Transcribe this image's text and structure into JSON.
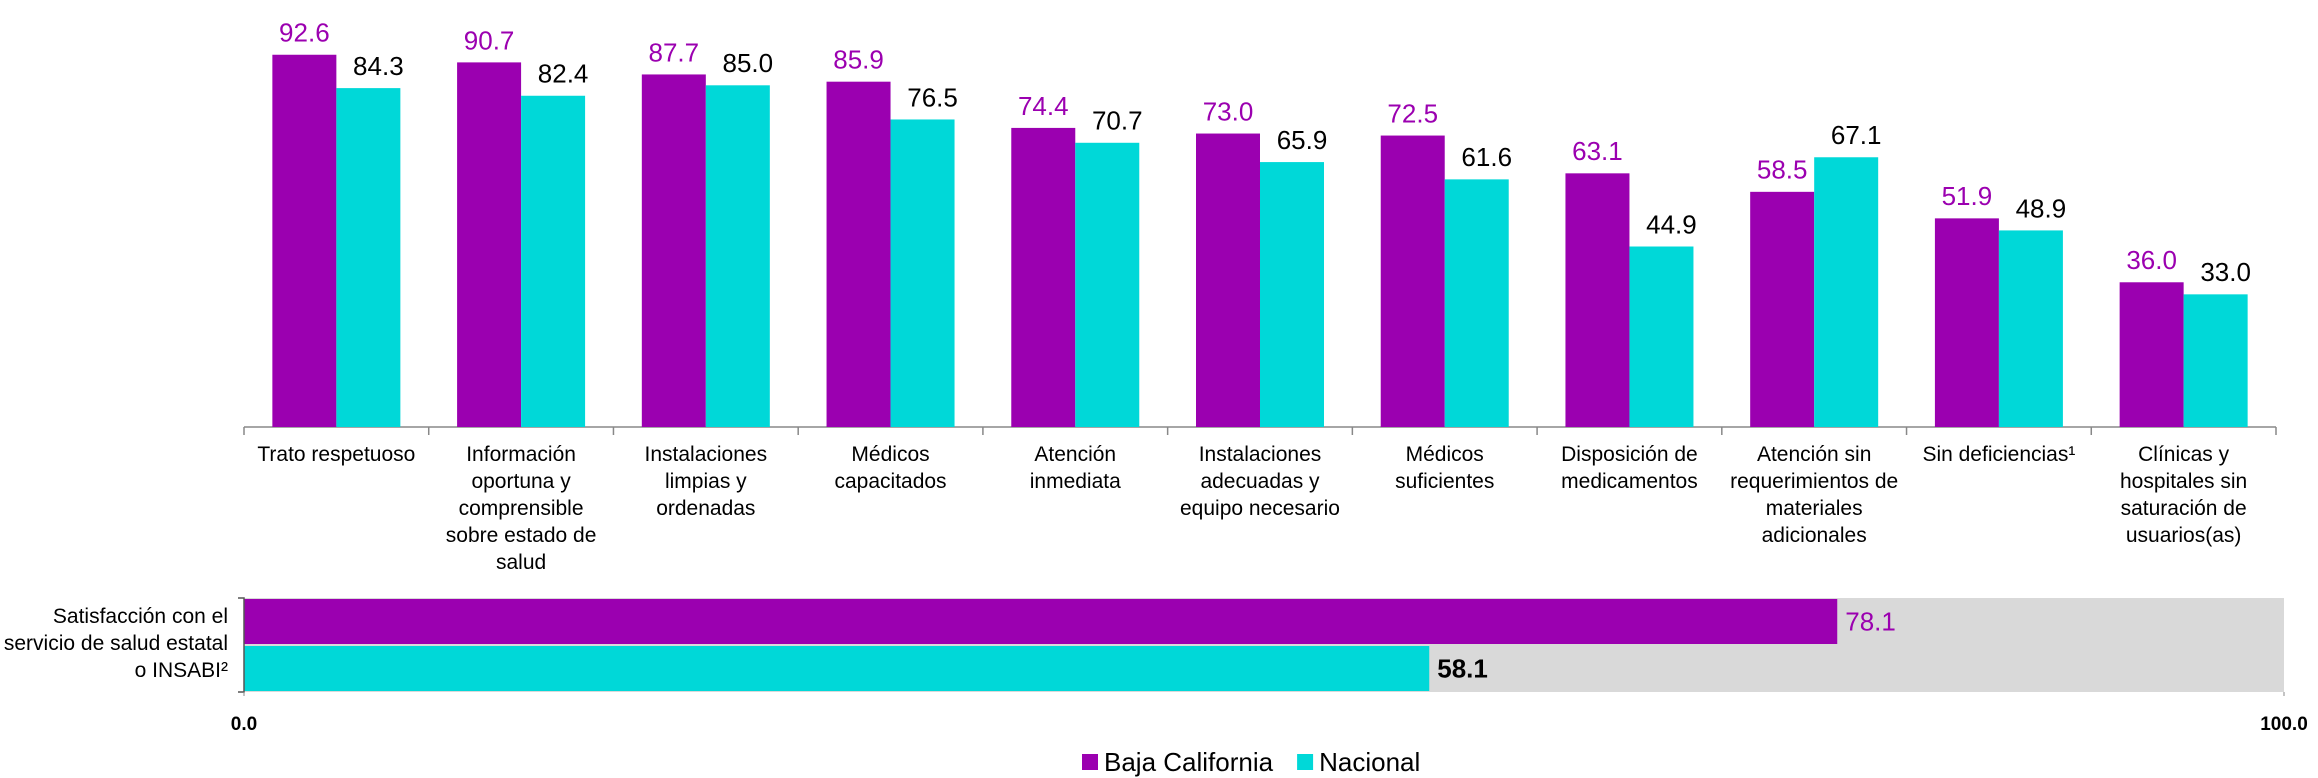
{
  "chart_data": [
    {
      "type": "bar",
      "categories": [
        "Trato respetuoso",
        "Información oportuna y comprensible sobre estado de salud",
        "Instalaciones limpias y ordenadas",
        "Médicos capacitados",
        "Atención inmediata",
        "Instalaciones adecuadas y equipo necesario",
        "Médicos suficientes",
        "Disposición de medicamentos",
        "Atención sin requerimientos de materiales adicionales",
        "Sin deficiencias¹",
        "Clínicas y hospitales sin saturación de usuarios(as)"
      ],
      "series": [
        {
          "name": "Baja California",
          "color": "#9b00b0",
          "values": [
            92.6,
            90.7,
            87.7,
            85.9,
            74.4,
            73.0,
            72.5,
            63.1,
            58.5,
            51.9,
            36.0
          ],
          "value_labels": [
            "92.6",
            "90.7",
            "87.7",
            "85.9",
            "74.4",
            "73.0",
            "72.5",
            "63.1",
            "58.5",
            "51.9",
            "36.0"
          ]
        },
        {
          "name": "Nacional",
          "color": "#00d8d8",
          "values": [
            84.3,
            82.4,
            85.0,
            76.5,
            70.7,
            65.9,
            61.6,
            44.9,
            67.1,
            48.9,
            33.0
          ],
          "value_labels": [
            "84.3",
            "82.4",
            "85.0",
            "76.5",
            "70.7",
            "65.9",
            "61.6",
            "44.9",
            "67.1",
            "48.9",
            "33.0"
          ]
        }
      ],
      "ylim": [
        0,
        100
      ]
    },
    {
      "type": "hbar",
      "categories": [
        "Satisfacción con el servicio de salud estatal o INSABI²"
      ],
      "series": [
        {
          "color": "#9b00b0",
          "values": [
            78.1
          ]
        },
        {
          "color": "#00d8d8",
          "values": [
            58.1
          ]
        }
      ],
      "xlim": [
        0,
        100
      ],
      "xticks": [
        {
          "value": 0,
          "label": "0.0"
        },
        {
          "value": 100,
          "label": "100.0"
        }
      ]
    }
  ]
}
